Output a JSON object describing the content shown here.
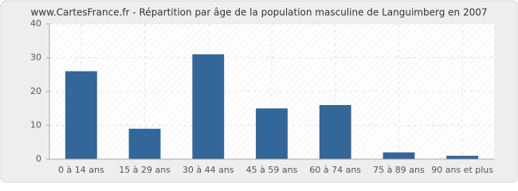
{
  "chart_data": {
    "type": "bar",
    "title": "www.CartesFrance.fr - Répartition par âge de la population masculine de Languimberg en 2007",
    "categories": [
      "0 à 14 ans",
      "15 à 29 ans",
      "30 à 44 ans",
      "45 à 59 ans",
      "60 à 74 ans",
      "75 à 89 ans",
      "90 ans et plus"
    ],
    "values": [
      26,
      9,
      31,
      15,
      16,
      2,
      1
    ],
    "color": "#336699",
    "ylim": [
      0,
      40
    ],
    "yticks": [
      0,
      10,
      20,
      30,
      40
    ],
    "grid": true
  }
}
